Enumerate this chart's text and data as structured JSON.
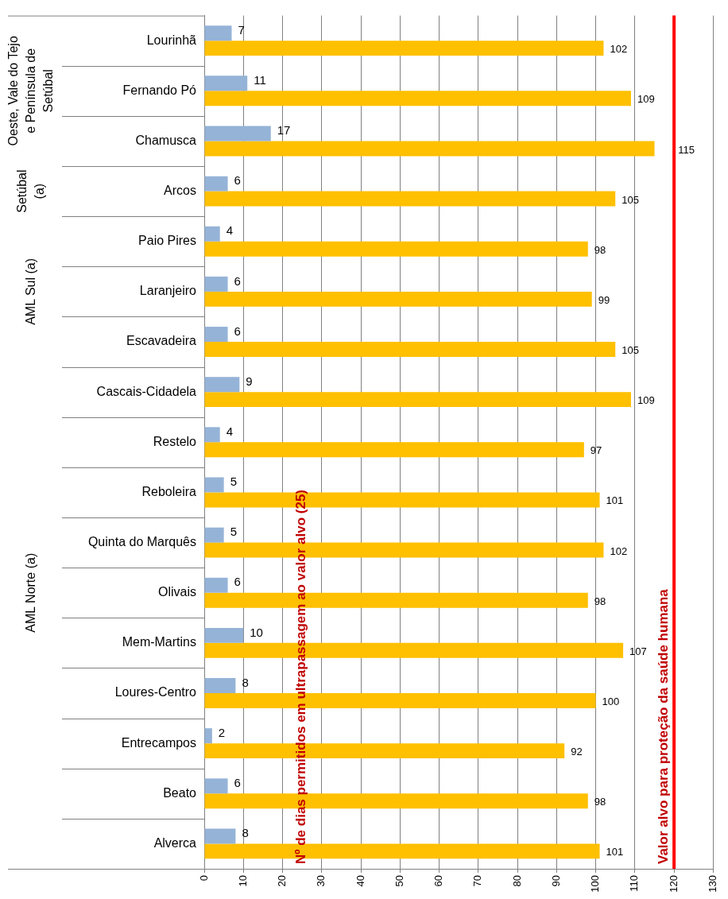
{
  "chart_data": {
    "type": "bar",
    "orientation": "horizontal",
    "categories": [
      "Lourinhã",
      "Fernando Pó",
      "Chamusca",
      "Arcos",
      "Paio Pires",
      "Laranjeiro",
      "Escavadeira",
      "Cascais-Cidadela",
      "Restelo",
      "Reboleira",
      "Quinta do Marquês",
      "Olivais",
      "Mem-Martins",
      "Loures-Centro",
      "Entrecampos",
      "Beato",
      "Alverca"
    ],
    "series": [
      {
        "color": "#95b3d7",
        "values": [
          7,
          11,
          17,
          6,
          4,
          6,
          6,
          9,
          4,
          5,
          5,
          6,
          10,
          8,
          2,
          6,
          8
        ]
      },
      {
        "color": "#ffc000",
        "values": [
          102,
          109,
          115,
          105,
          98,
          99,
          105,
          109,
          97,
          101,
          102,
          98,
          107,
          100,
          92,
          98,
          101
        ]
      }
    ],
    "xlim": [
      0,
      130
    ],
    "xticks": [
      0,
      10,
      20,
      30,
      40,
      50,
      60,
      70,
      80,
      90,
      100,
      110,
      120,
      130
    ],
    "grid": "x",
    "legend": false,
    "data_labels": true,
    "ref_lines": [
      {
        "axis": "x",
        "value": 120,
        "label": "Valor alvo para proteção da saúde humana",
        "color": "#ff0000"
      }
    ],
    "annotations": [
      "Nº de dias permitidos em ultrapassagem ao valor alvo (25)",
      "Oeste, Vale do Tejo e Península de Setúbal",
      "Setúbal (a)",
      "AML Sul (a)",
      "AML Norte (a)"
    ]
  }
}
